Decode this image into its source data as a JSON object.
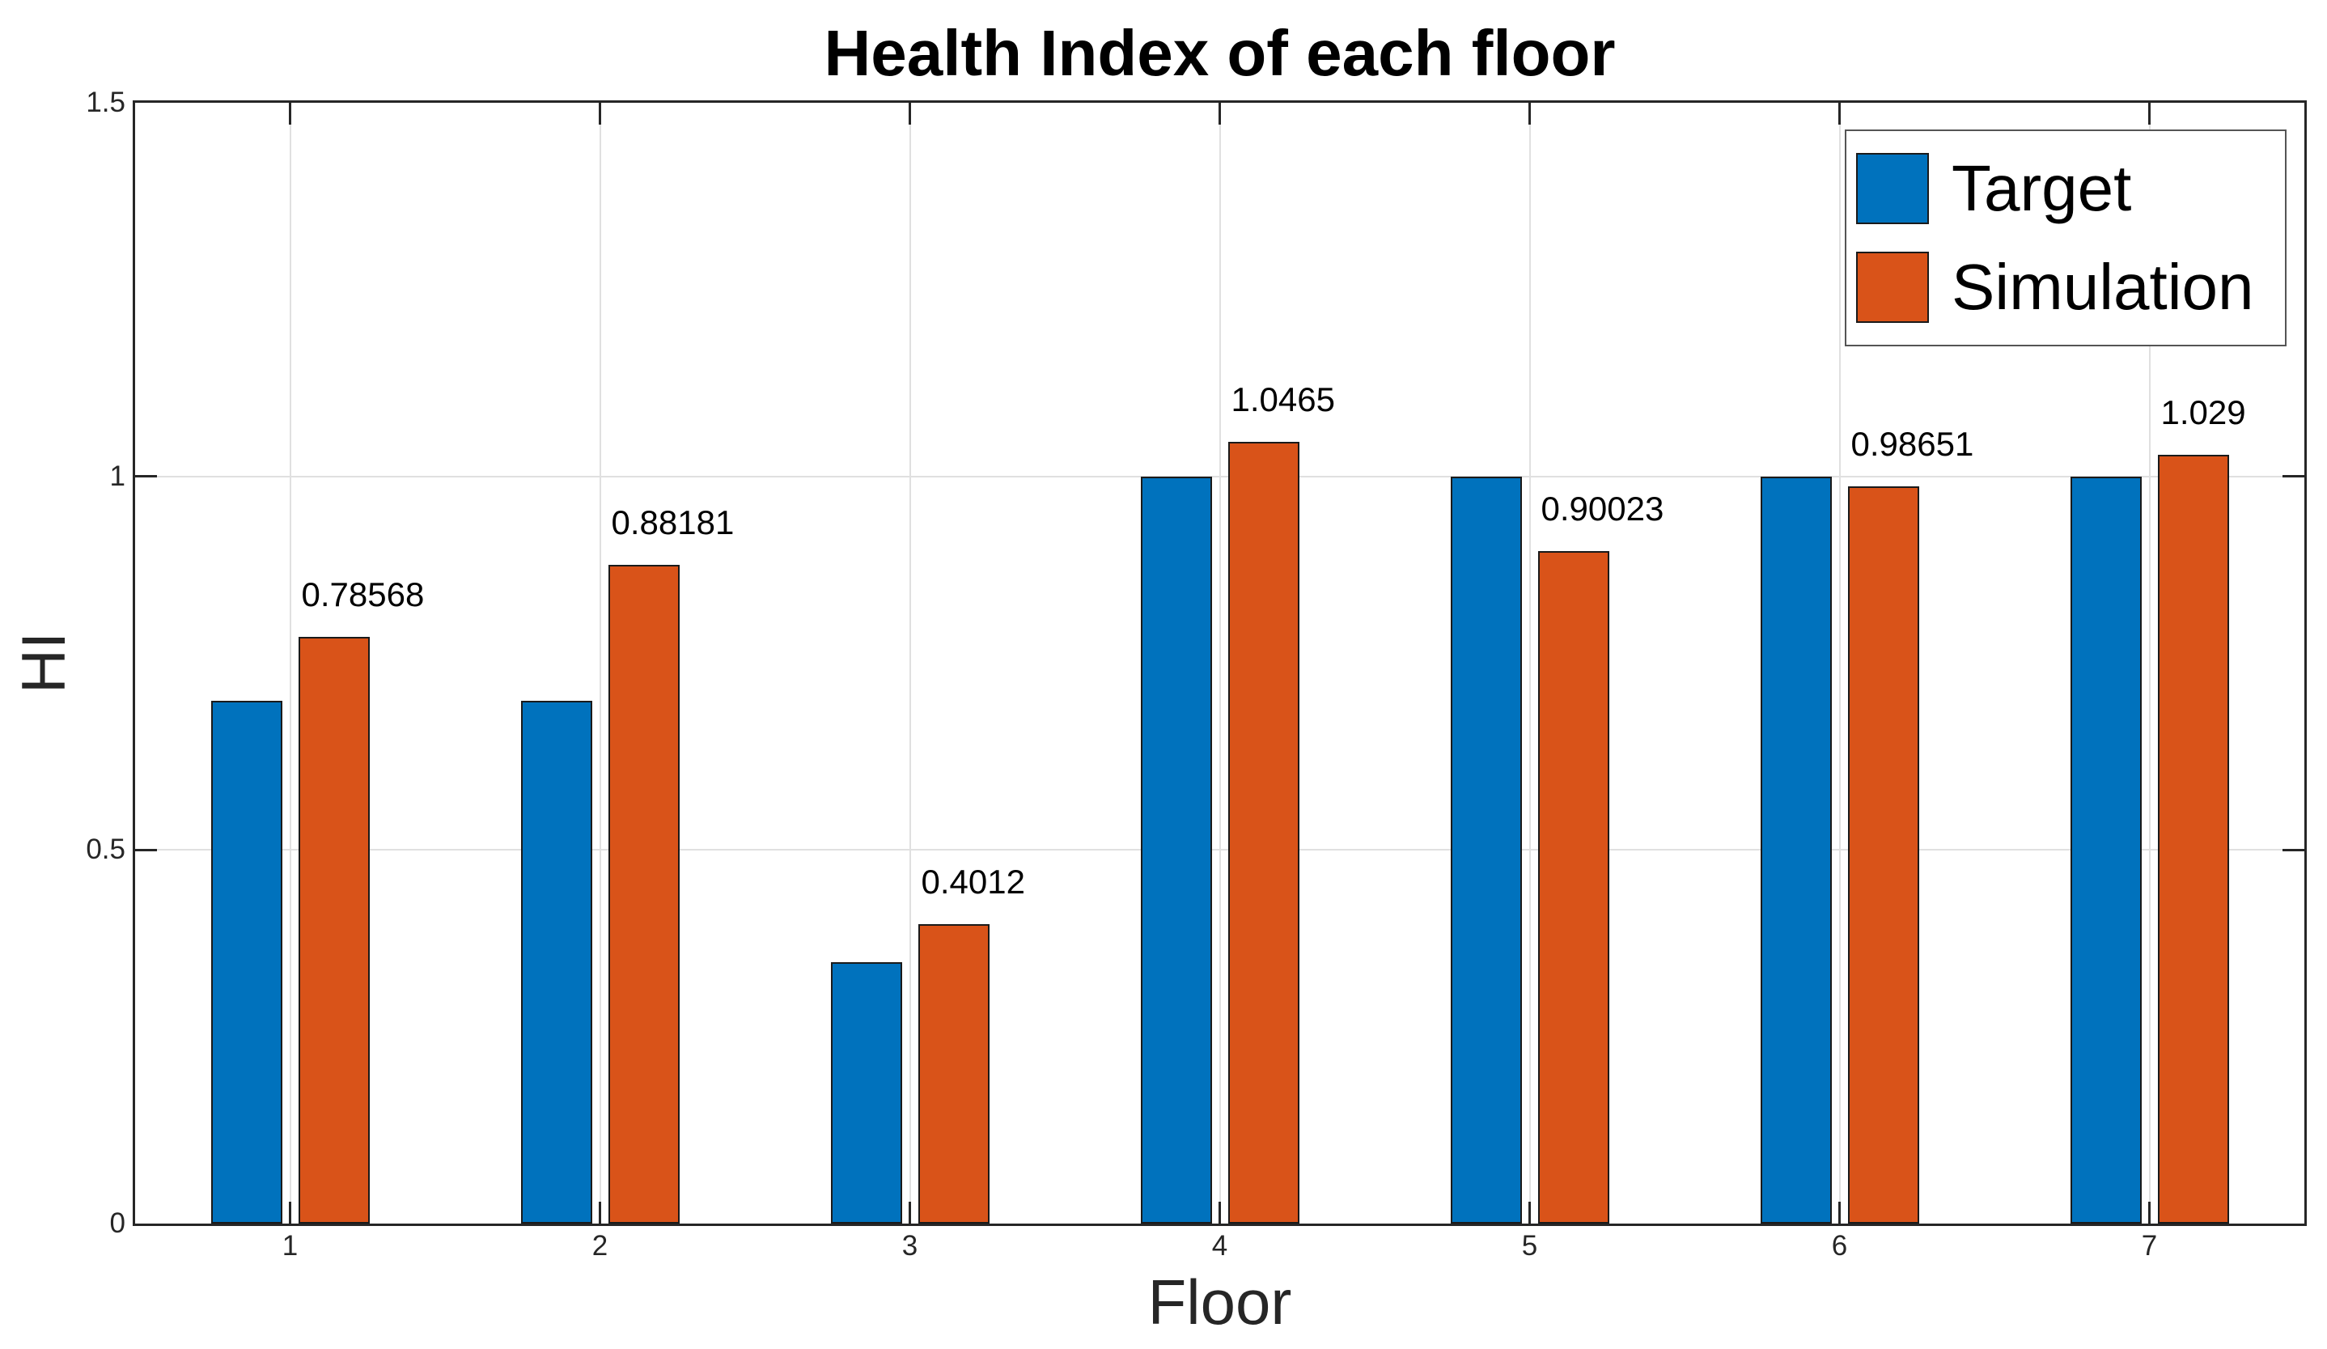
{
  "chart_data": {
    "type": "bar",
    "title": "Health Index of each floor",
    "xlabel": "Floor",
    "ylabel": "HI",
    "categories": [
      "1",
      "2",
      "3",
      "4",
      "5",
      "6",
      "7"
    ],
    "series": [
      {
        "name": "Target",
        "color": "#0072BD",
        "values": [
          0.7,
          0.7,
          0.35,
          1,
          1,
          1,
          1
        ]
      },
      {
        "name": "Simulation",
        "color": "#D95319",
        "values": [
          0.78568,
          0.88181,
          0.4012,
          1.0465,
          0.90023,
          0.98651,
          1.029
        ],
        "value_labels": [
          "0.78568",
          "0.88181",
          "0.4012",
          "1.0465",
          "0.90023",
          "0.98651",
          "1.029"
        ]
      }
    ],
    "ylim": [
      0,
      1.5
    ],
    "y_ticks": [
      {
        "value": 0,
        "label": "0"
      },
      {
        "value": 0.5,
        "label": "0.5"
      },
      {
        "value": 1,
        "label": "1"
      },
      {
        "value": 1.5,
        "label": "1.5"
      }
    ],
    "grid": true,
    "legend_position": "top-right",
    "colors": {
      "axis": "#262626",
      "grid": "#E0E0E0",
      "bar_edge": "#1A1A1A",
      "text": "#000000",
      "legend_border": "#555555",
      "background": "#FFFFFF"
    }
  }
}
